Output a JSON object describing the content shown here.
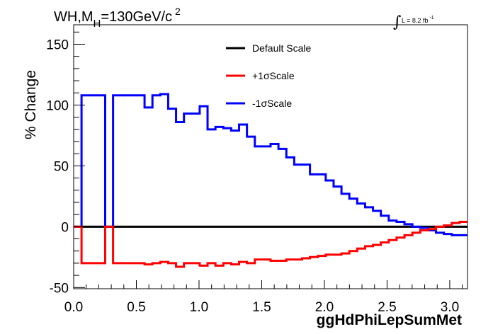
{
  "chart_data": {
    "type": "line",
    "title_parts": {
      "main": "WH,M",
      "sub": "H",
      "rest": "=130GeV/c",
      "sup": "2"
    },
    "lumi": {
      "integral_glyph": "∫",
      "text": "L = 8.2 fb",
      "sup": "-1"
    },
    "xlabel": "ggHdPhiLepSumMet",
    "ylabel": "% Change",
    "xlim": [
      0,
      3.1416
    ],
    "ylim": [
      -51,
      166
    ],
    "x_ticks": [
      "0.0",
      "0.5",
      "1.0",
      "1.5",
      "2.0",
      "2.5",
      "3.0"
    ],
    "x_tick_values": [
      0,
      0.5,
      1.0,
      1.5,
      2.0,
      2.5,
      3.0
    ],
    "y_ticks": [
      "-50",
      "0",
      "50",
      "100",
      "150"
    ],
    "y_tick_values": [
      -50,
      0,
      50,
      100,
      150
    ],
    "bin_edges": [
      0,
      0.0628,
      0.1257,
      0.1885,
      0.2513,
      0.3142,
      0.377,
      0.4398,
      0.5027,
      0.5655,
      0.6283,
      0.6912,
      0.754,
      0.8168,
      0.8796,
      0.9425,
      1.0053,
      1.0681,
      1.131,
      1.1938,
      1.2566,
      1.3195,
      1.3823,
      1.4451,
      1.508,
      1.5708,
      1.6336,
      1.6965,
      1.7593,
      1.8221,
      1.885,
      1.9478,
      2.0106,
      2.0735,
      2.1363,
      2.1991,
      2.2619,
      2.3248,
      2.3876,
      2.4504,
      2.5133,
      2.5761,
      2.6389,
      2.7018,
      2.7646,
      2.8274,
      2.8903,
      2.9531,
      3.0159,
      3.0788,
      3.1416
    ],
    "series": [
      {
        "name": "Default Scale",
        "color": "#000000",
        "values": [
          0,
          0,
          0,
          0,
          0,
          0,
          0,
          0,
          0,
          0,
          0,
          0,
          0,
          0,
          0,
          0,
          0,
          0,
          0,
          0,
          0,
          0,
          0,
          0,
          0,
          0,
          0,
          0,
          0,
          0,
          0,
          0,
          0,
          0,
          0,
          0,
          0,
          0,
          0,
          0,
          0,
          0,
          0,
          0,
          0,
          0,
          0,
          0,
          0,
          0
        ]
      },
      {
        "name": "+1σScale",
        "color": "#ff0000",
        "values": [
          0,
          -30,
          -30,
          -30,
          0,
          -30,
          -30,
          -30,
          -30,
          -31,
          -30,
          -29,
          -30,
          -33,
          -30,
          -30,
          -32,
          -30,
          -32,
          -30,
          -31,
          -29,
          -30,
          -27,
          -27,
          -28,
          -28,
          -27,
          -27,
          -26,
          -25,
          -24,
          -23,
          -23,
          -22,
          -20,
          -18,
          -16,
          -15,
          -13,
          -11,
          -9,
          -7,
          -5,
          -3,
          -2,
          0,
          1,
          3,
          4
        ]
      },
      {
        "name": "-1σScale",
        "color": "#0000ff",
        "values": [
          0,
          108,
          108,
          108,
          0,
          108,
          108,
          108,
          108,
          98,
          108,
          109,
          97,
          86,
          93,
          93,
          99,
          80,
          82,
          81,
          79,
          84,
          74,
          66,
          66,
          68,
          64,
          57,
          51,
          51,
          43,
          43,
          38,
          33,
          27,
          23,
          19,
          16,
          13,
          9,
          5,
          4,
          2,
          0,
          -1,
          -3,
          -5,
          -6,
          -7,
          -7
        ]
      }
    ],
    "legend": {
      "position": "top-right"
    },
    "grid": false
  }
}
